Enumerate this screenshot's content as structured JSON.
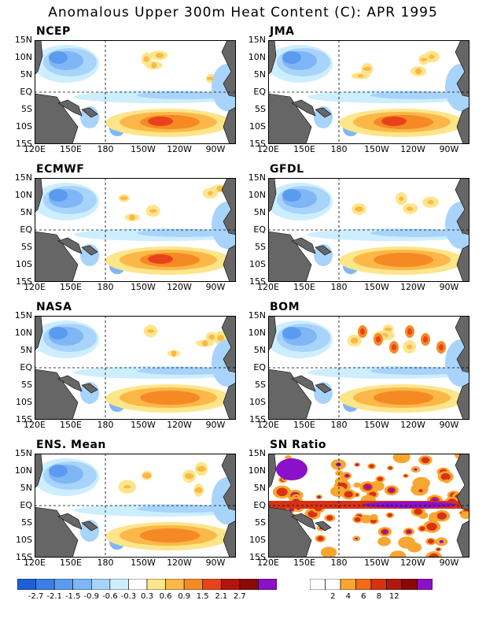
{
  "title": "Anomalous Upper 300m Heat Content (C): APR 1995",
  "panels": [
    {
      "label": "NCEP"
    },
    {
      "label": "JMA"
    },
    {
      "label": "ECMWF"
    },
    {
      "label": "GFDL"
    },
    {
      "label": "NASA"
    },
    {
      "label": "BOM"
    },
    {
      "label": "ENS. Mean"
    },
    {
      "label": "SN Ratio"
    }
  ],
  "lat_labels": [
    "15N",
    "10N",
    "5N",
    "EQ",
    "5S",
    "10S",
    "15S"
  ],
  "lon_labels": [
    "120E",
    "150E",
    "180",
    "150W",
    "120W",
    "90W"
  ],
  "anomaly_colorbar": {
    "labels": [
      "-2.7",
      "-2.1",
      "-1.5",
      "-0.9",
      "-0.6",
      "-0.3",
      "0.3",
      "0.6",
      "0.9",
      "1.5",
      "2.1",
      "2.7"
    ],
    "colors": [
      "#1f5fd6",
      "#3b7ee6",
      "#5a9bf0",
      "#7fb6f5",
      "#a8d3fa",
      "#cdeefe",
      "#ffffff",
      "#fde58a",
      "#fbb848",
      "#f58a25",
      "#e8421a",
      "#b31410",
      "#8a0a0a",
      "#8a10c9"
    ]
  },
  "sn_colorbar": {
    "labels": [
      "2",
      "4",
      "6",
      "8",
      "12"
    ],
    "colors": [
      "#ffffff",
      "#ffffff",
      "#f7a630",
      "#f06a18",
      "#d83215",
      "#b01810",
      "#8a0808",
      "#8a10c9"
    ]
  },
  "colors": {
    "land": "#666666",
    "positive": "#f58a25",
    "negative": "#5a9bf0",
    "purple": "#8a10c9"
  }
}
